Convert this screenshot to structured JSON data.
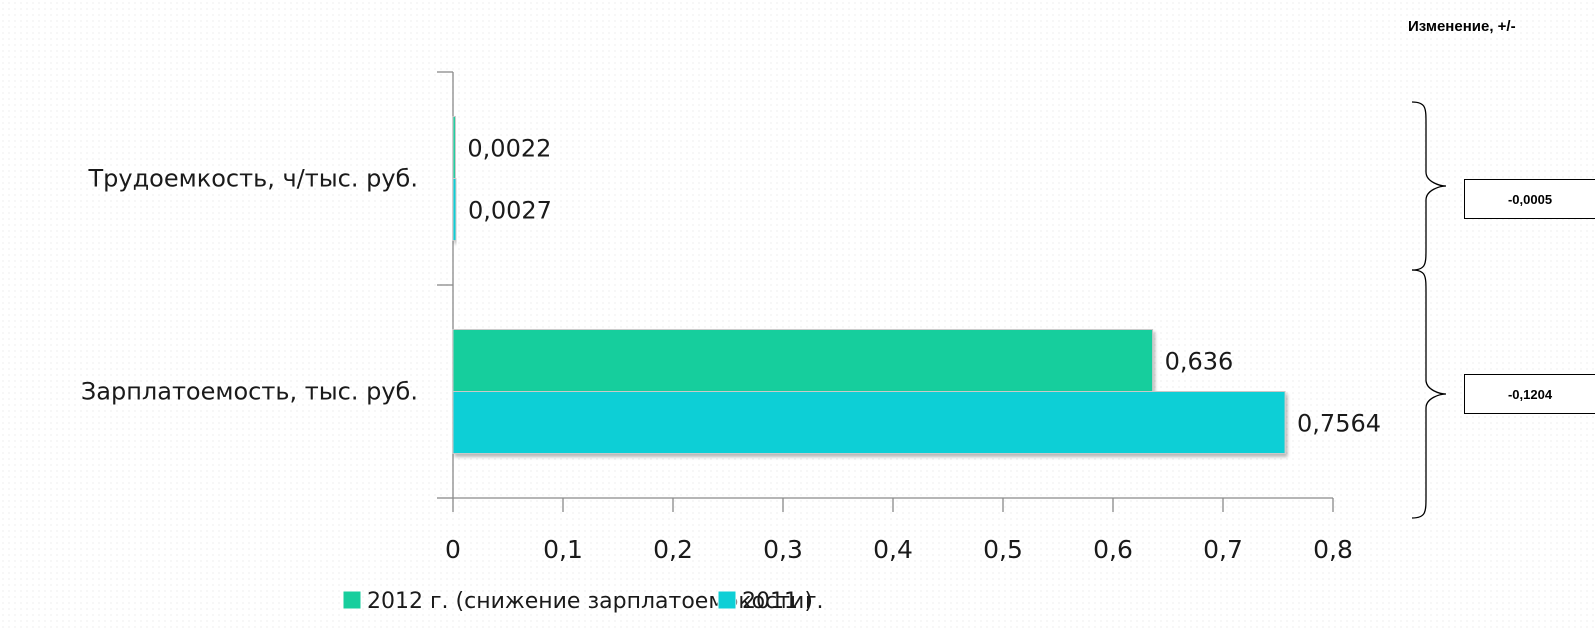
{
  "change_header": "Изменение, +/-",
  "changes": [
    "-0,0005",
    "-0,1204"
  ],
  "chart_data": {
    "type": "bar",
    "orientation": "horizontal",
    "categories": [
      "Трудоемкость, ч/тыс. руб.",
      "Зарплатоемость, тыс. руб."
    ],
    "series": [
      {
        "name": "2012 г. (снижение зарплатоемокости)",
        "values": [
          0.0022,
          0.636
        ],
        "labels": [
          "0,0022",
          "0,636"
        ],
        "color": "#17ce9d"
      },
      {
        "name": "2011 г.",
        "values": [
          0.0027,
          0.7564
        ],
        "labels": [
          "0,0027",
          "0,7564"
        ],
        "color": "#0fcfd6"
      }
    ],
    "xlim": [
      0,
      0.8
    ],
    "xticks": [
      0,
      0.1,
      0.2,
      0.3,
      0.4,
      0.5,
      0.6,
      0.7,
      0.8
    ],
    "xtick_labels": [
      "0",
      "0,1",
      "0,2",
      "0,3",
      "0,4",
      "0,5",
      "0,6",
      "0,7",
      "0,8"
    ],
    "grid": false,
    "legend_position": "bottom",
    "title": "",
    "xlabel": "",
    "ylabel": ""
  }
}
